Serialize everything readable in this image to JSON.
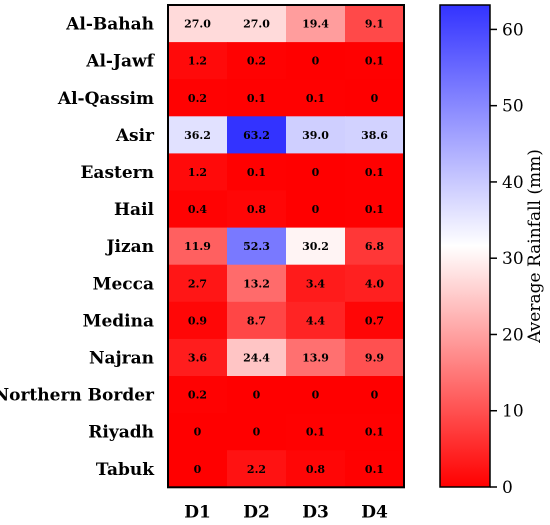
{
  "chart_data": {
    "type": "heatmap",
    "rows": [
      "Al-Bahah",
      "Al-Jawf",
      "Al-Qassim",
      "Asir",
      "Eastern",
      "Hail",
      "Jizan",
      "Mecca",
      "Medina",
      "Najran",
      "Northern Border",
      "Riyadh",
      "Tabuk"
    ],
    "columns": [
      "D1",
      "D2",
      "D3",
      "D4"
    ],
    "values": [
      [
        27.0,
        27.0,
        19.4,
        9.1
      ],
      [
        1.2,
        0.2,
        0,
        0.1
      ],
      [
        0.2,
        0.1,
        0.1,
        0
      ],
      [
        36.2,
        63.2,
        39.0,
        38.6
      ],
      [
        1.2,
        0.1,
        0,
        0.1
      ],
      [
        0.4,
        0.8,
        0,
        0.1
      ],
      [
        11.9,
        52.3,
        30.2,
        6.8
      ],
      [
        2.7,
        13.2,
        3.4,
        4.0
      ],
      [
        0.9,
        8.7,
        4.4,
        0.7
      ],
      [
        3.6,
        24.4,
        13.9,
        9.9
      ],
      [
        0.2,
        0,
        0,
        0
      ],
      [
        0,
        0,
        0.1,
        0.1
      ],
      [
        0,
        2.2,
        0.8,
        0.1
      ]
    ],
    "value_labels": [
      [
        "27.0",
        "27.0",
        "19.4",
        "9.1"
      ],
      [
        "1.2",
        "0.2",
        "0",
        "0.1"
      ],
      [
        "0.2",
        "0.1",
        "0.1",
        "0"
      ],
      [
        "36.2",
        "63.2",
        "39.0",
        "38.6"
      ],
      [
        "1.2",
        "0.1",
        "0",
        "0.1"
      ],
      [
        "0.4",
        "0.8",
        "0",
        "0.1"
      ],
      [
        "11.9",
        "52.3",
        "30.2",
        "6.8"
      ],
      [
        "2.7",
        "13.2",
        "3.4",
        "4.0"
      ],
      [
        "0.9",
        "8.7",
        "4.4",
        "0.7"
      ],
      [
        "3.6",
        "24.4",
        "13.9",
        "9.9"
      ],
      [
        "0.2",
        "0",
        "0",
        "0"
      ],
      [
        "0",
        "0",
        "0.1",
        "0.1"
      ],
      [
        "0",
        "2.2",
        "0.8",
        "0.1"
      ]
    ],
    "colorbar": {
      "label": "Average Rainfall (mm)",
      "range": [
        0,
        63.2
      ],
      "ticks": [
        0,
        10,
        20,
        30,
        40,
        50,
        60
      ],
      "colors": {
        "low": "#ff0000",
        "mid": "#ffffff",
        "high": "#3333ff"
      },
      "mid_value": 31.6
    }
  }
}
